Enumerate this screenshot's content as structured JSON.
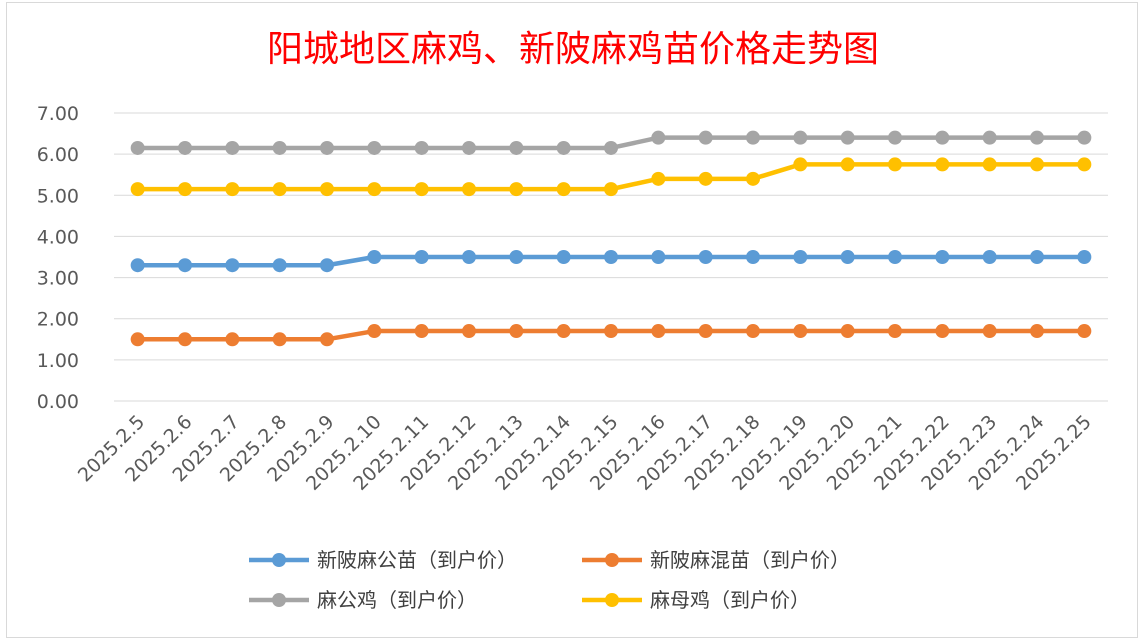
{
  "chart_data": {
    "type": "line",
    "title": "阳城地区麻鸡、新陂麻鸡苗价格走势图",
    "categories": [
      "2025.2.5",
      "2025.2.6",
      "2025.2.7",
      "2025.2.8",
      "2025.2.9",
      "2025.2.10",
      "2025.2.11",
      "2025.2.12",
      "2025.2.13",
      "2025.2.14",
      "2025.2.15",
      "2025.2.16",
      "2025.2.17",
      "2025.2.18",
      "2025.2.19",
      "2025.2.20",
      "2025.2.21",
      "2025.2.22",
      "2025.2.23",
      "2025.2.24",
      "2025.2.25"
    ],
    "ylim": [
      0,
      7
    ],
    "yticks": [
      "0.00",
      "1.00",
      "2.00",
      "3.00",
      "4.00",
      "5.00",
      "6.00",
      "7.00"
    ],
    "grid": true,
    "legend_position": "bottom",
    "series": [
      {
        "name": "新陂麻公苗（到户价）",
        "color": "#5b9bd5",
        "values": [
          3.3,
          3.3,
          3.3,
          3.3,
          3.3,
          3.5,
          3.5,
          3.5,
          3.5,
          3.5,
          3.5,
          3.5,
          3.5,
          3.5,
          3.5,
          3.5,
          3.5,
          3.5,
          3.5,
          3.5,
          3.5
        ]
      },
      {
        "name": "新陂麻混苗（到户价）",
        "color": "#ed7d31",
        "values": [
          1.5,
          1.5,
          1.5,
          1.5,
          1.5,
          1.7,
          1.7,
          1.7,
          1.7,
          1.7,
          1.7,
          1.7,
          1.7,
          1.7,
          1.7,
          1.7,
          1.7,
          1.7,
          1.7,
          1.7,
          1.7
        ]
      },
      {
        "name": "麻公鸡（到户价）",
        "color": "#a5a5a5",
        "values": [
          6.15,
          6.15,
          6.15,
          6.15,
          6.15,
          6.15,
          6.15,
          6.15,
          6.15,
          6.15,
          6.15,
          6.4,
          6.4,
          6.4,
          6.4,
          6.4,
          6.4,
          6.4,
          6.4,
          6.4,
          6.4
        ]
      },
      {
        "name": "麻母鸡（到户价）",
        "color": "#ffc000",
        "values": [
          5.15,
          5.15,
          5.15,
          5.15,
          5.15,
          5.15,
          5.15,
          5.15,
          5.15,
          5.15,
          5.15,
          5.4,
          5.4,
          5.4,
          5.75,
          5.75,
          5.75,
          5.75,
          5.75,
          5.75,
          5.75
        ]
      }
    ]
  }
}
